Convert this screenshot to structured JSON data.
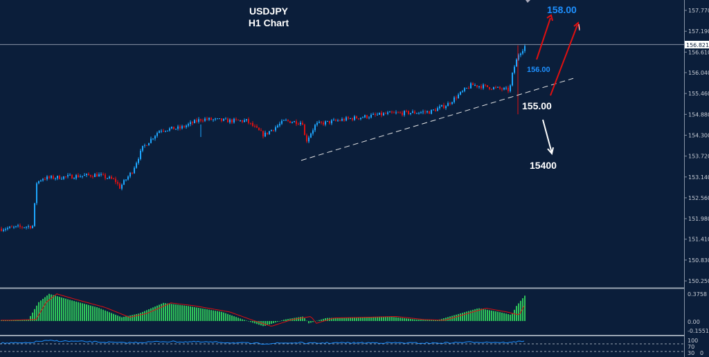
{
  "chart_data": {
    "type": "candlestick",
    "title": "USDJPY",
    "subtitle": "H1 Chart",
    "ylim": [
      150.0,
      158.06
    ],
    "y_ticks": [
      "157.770",
      "157.190",
      "156.610",
      "156.040",
      "155.460",
      "154.880",
      "154.300",
      "153.720",
      "153.140",
      "152.560",
      "151.980",
      "151.410",
      "150.830",
      "150.250"
    ],
    "current_price": "156.821",
    "price_path": [
      [
        0,
        151.7
      ],
      [
        48,
        151.78
      ],
      [
        50,
        152.95
      ],
      [
        60,
        153.1
      ],
      [
        100,
        153.15
      ],
      [
        140,
        153.2
      ],
      [
        165,
        153.05
      ],
      [
        172,
        152.85
      ],
      [
        190,
        153.3
      ],
      [
        205,
        153.95
      ],
      [
        230,
        154.45
      ],
      [
        260,
        154.5
      ],
      [
        290,
        154.75
      ],
      [
        330,
        154.7
      ],
      [
        355,
        154.7
      ],
      [
        380,
        154.3
      ],
      [
        410,
        154.7
      ],
      [
        437,
        154.65
      ],
      [
        440,
        154.1
      ],
      [
        455,
        154.6
      ],
      [
        500,
        154.75
      ],
      [
        560,
        154.9
      ],
      [
        620,
        154.95
      ],
      [
        645,
        155.15
      ],
      [
        660,
        155.4
      ],
      [
        680,
        155.7
      ],
      [
        700,
        155.65
      ],
      [
        735,
        155.55
      ],
      [
        740,
        156.1
      ],
      [
        748,
        156.55
      ],
      [
        758,
        156.8
      ]
    ],
    "trendline": [
      [
        435,
        153.6
      ],
      [
        828,
        155.88
      ]
    ],
    "annotations": [
      {
        "text": "158.00",
        "color": "#1e90ff"
      },
      {
        "text": "156.00",
        "color": "#1e90ff"
      },
      {
        "text": "155.00",
        "color": "#ffffff"
      },
      {
        "text": "15400",
        "color": "#ffffff"
      }
    ],
    "macd": {
      "ylim": [
        -0.1551,
        0.3758
      ],
      "ticks": [
        "0.3758",
        "0.00",
        "-0.1551"
      ],
      "path": [
        [
          0,
          0.01
        ],
        [
          40,
          0.02
        ],
        [
          55,
          0.25
        ],
        [
          70,
          0.36
        ],
        [
          100,
          0.28
        ],
        [
          140,
          0.18
        ],
        [
          175,
          0.05
        ],
        [
          200,
          0.1
        ],
        [
          235,
          0.24
        ],
        [
          270,
          0.2
        ],
        [
          320,
          0.12
        ],
        [
          350,
          0.02
        ],
        [
          380,
          -0.07
        ],
        [
          410,
          0.02
        ],
        [
          437,
          0.06
        ],
        [
          445,
          -0.03
        ],
        [
          470,
          0.04
        ],
        [
          520,
          0.05
        ],
        [
          560,
          0.06
        ],
        [
          600,
          0.02
        ],
        [
          630,
          0.01
        ],
        [
          660,
          0.09
        ],
        [
          690,
          0.17
        ],
        [
          720,
          0.12
        ],
        [
          738,
          0.08
        ],
        [
          745,
          0.2
        ],
        [
          760,
          0.37
        ]
      ]
    },
    "rsi": {
      "ticks": [
        "100",
        "70",
        "30",
        "0"
      ]
    }
  },
  "colors": {
    "bull": "#1ea7ff",
    "bear": "#e01010",
    "bg": "#0b1e3a",
    "hist": "#2ec45a",
    "signal": "#e01010"
  }
}
